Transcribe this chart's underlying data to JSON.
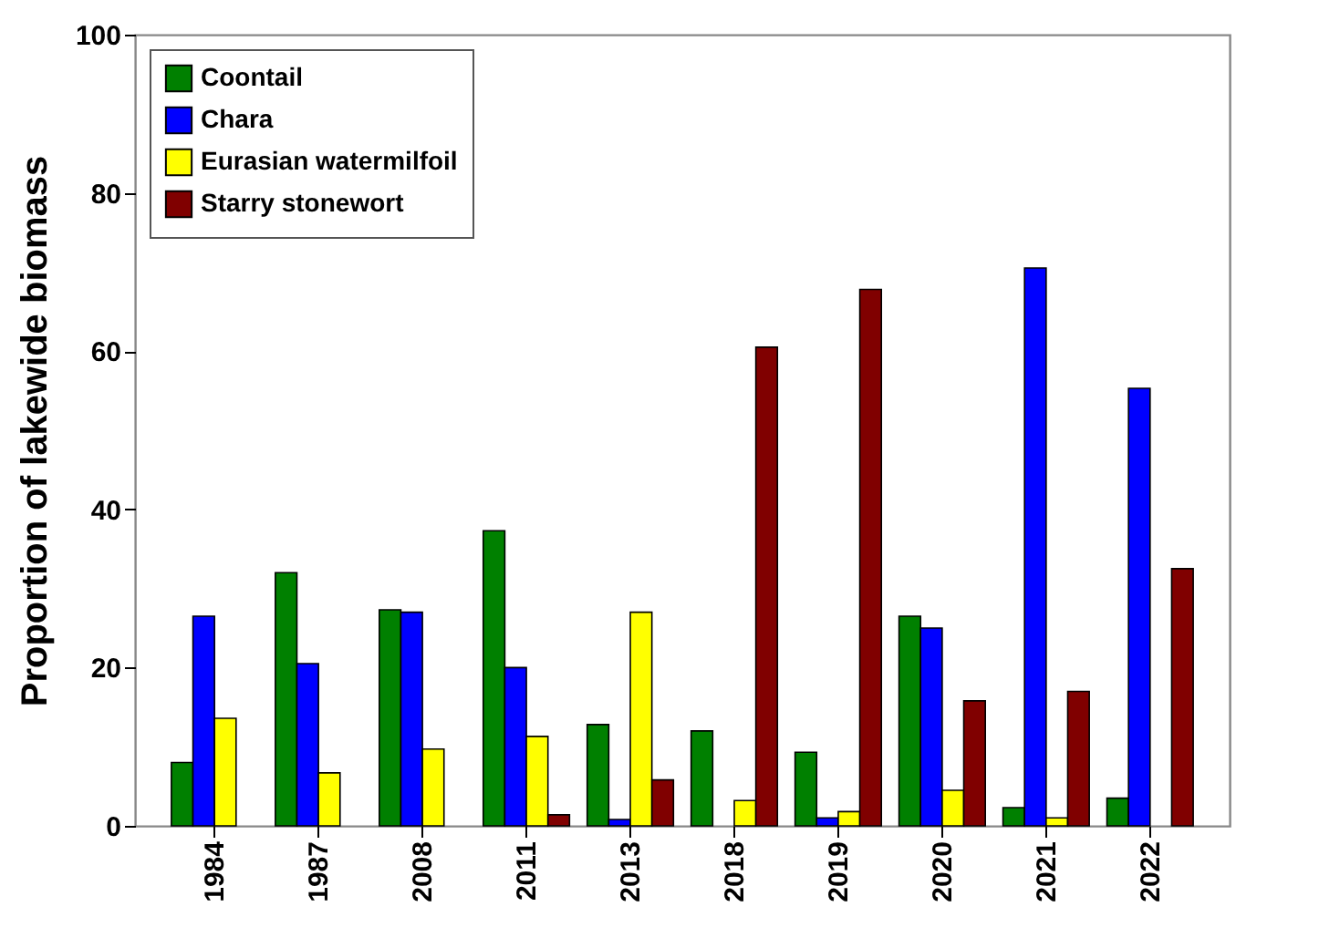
{
  "chart_data": {
    "type": "bar",
    "ylabel": "Proportion of lakewide biomass",
    "categories": [
      "1984",
      "1987",
      "2008",
      "2011",
      "2013",
      "2018",
      "2019",
      "2020",
      "2021",
      "2022"
    ],
    "series": [
      {
        "name": "Coontail",
        "color": "#008000",
        "values": [
          8,
          32,
          27.3,
          37.3,
          12.8,
          12,
          9.3,
          26.5,
          2.3,
          3.5
        ]
      },
      {
        "name": "Chara",
        "color": "#0000ff",
        "values": [
          26.5,
          20.5,
          27,
          20,
          0.8,
          null,
          1,
          25,
          70.5,
          55.3
        ]
      },
      {
        "name": "Eurasian watermilfoil",
        "color": "#ffff00",
        "values": [
          13.6,
          6.7,
          9.7,
          11.3,
          27,
          3.2,
          1.8,
          4.5,
          1,
          null
        ]
      },
      {
        "name": "Starry stonewort",
        "color": "#800000",
        "values": [
          null,
          null,
          null,
          1.4,
          5.8,
          60.5,
          67.8,
          15.8,
          17,
          32.5
        ]
      }
    ],
    "ylim": [
      0,
      100
    ],
    "yticks": [
      0,
      20,
      40,
      60,
      80,
      100
    ],
    "legend": "top left"
  }
}
